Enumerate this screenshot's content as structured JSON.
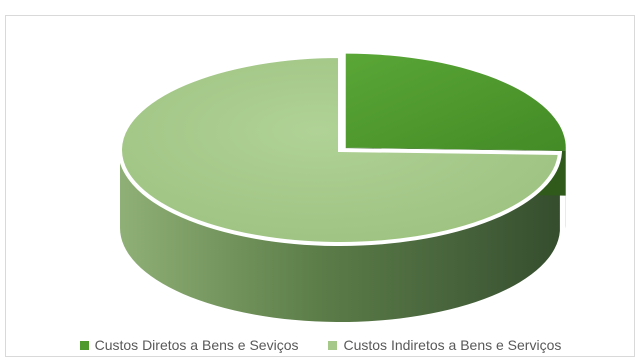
{
  "chart_data": {
    "type": "pie",
    "style": "3d-exploded",
    "title": "",
    "slices": [
      {
        "label": "Custos Diretos a Bens e Seviços",
        "value": 25.5,
        "color": "#4f9a2e"
      },
      {
        "label": "Custos Indiretos a Bens e Serviços",
        "value": 74.5,
        "color": "#a6c98a"
      }
    ],
    "legend_position": "bottom",
    "exploded_slice": 0
  }
}
